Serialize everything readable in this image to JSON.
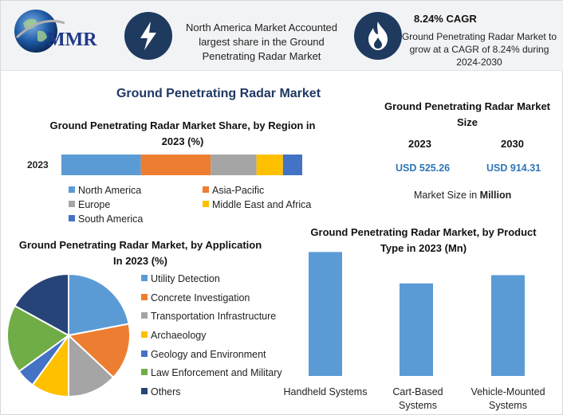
{
  "header": {
    "logo_text": "MMR",
    "left_icon": "lightning-bolt-icon",
    "left_text": "North America Market Accounted largest share in the Ground Penetrating Radar Market",
    "right_icon": "flame-icon",
    "cagr_title": "8.24% CAGR",
    "cagr_text": "Ground Penetrating Radar Market to grow at a CAGR of 8.24% during 2024-2030"
  },
  "main_title": "Ground Penetrating Radar Market",
  "market_size": {
    "title": "Ground Penetrating Radar Market Size",
    "year1": "2023",
    "year2": "2030",
    "value1": "USD 525.26",
    "value2": "USD 914.31",
    "unit_prefix": "Market Size in ",
    "unit_bold": "Million"
  },
  "colors": {
    "north_america": "#5b9bd5",
    "asia_pacific": "#ed7d31",
    "europe": "#a5a5a5",
    "middle_east": "#ffc000",
    "south_america": "#4472c4",
    "law_enforcement": "#70ad47",
    "others": "#264478",
    "header_circle": "#1e3a5f",
    "title_blue": "#1f3864"
  },
  "chart_data": [
    {
      "type": "bar",
      "stacked": true,
      "orientation": "horizontal",
      "title": "Ground Penetrating Radar Market Share, by Region in 2023 (%)",
      "categories": [
        "2023"
      ],
      "series": [
        {
          "name": "North America",
          "values": [
            33
          ]
        },
        {
          "name": "Asia-Pacific",
          "values": [
            29
          ]
        },
        {
          "name": "Europe",
          "values": [
            19
          ]
        },
        {
          "name": "Middle East and Africa",
          "values": [
            11
          ]
        },
        {
          "name": "South America",
          "values": [
            8
          ]
        }
      ],
      "legend": "bottom"
    },
    {
      "type": "pie",
      "title": "Ground Penetrating Radar Market, by Application In 2023 (%)",
      "labels": [
        "Utility Detection",
        "Concrete Investigation",
        "Transportation Infrastructure",
        "Archaeology",
        "Geology and Environment",
        "Law Enforcement and Military",
        "Others"
      ],
      "values": [
        22,
        15,
        13,
        10,
        5,
        18,
        17
      ],
      "legend": "right"
    },
    {
      "type": "bar",
      "title": "Ground Penetrating Radar Market, by Product Type in 2023 (Mn)",
      "categories": [
        "Handheld Systems",
        "Cart-Based Systems",
        "Vehicle-Mounted Systems"
      ],
      "values": [
        150,
        112,
        122
      ],
      "ylim": [
        0,
        160
      ],
      "grid": false
    }
  ]
}
